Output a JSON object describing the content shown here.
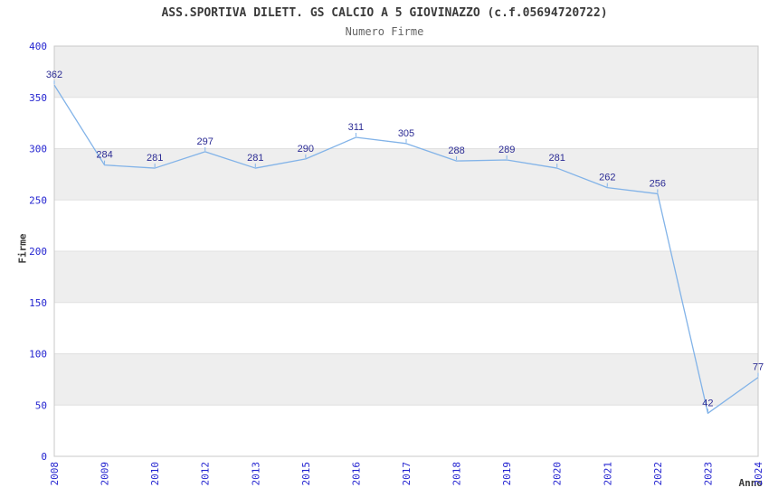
{
  "chart_data": {
    "type": "line",
    "title": "ASS.SPORTIVA DILETT. GS CALCIO A 5 GIOVINAZZO (c.f.05694720722)",
    "subtitle": "Numero Firme",
    "xlabel": "Anno",
    "ylabel": "Firme",
    "categories": [
      "2008",
      "2009",
      "2010",
      "2012",
      "2013",
      "2015",
      "2016",
      "2017",
      "2018",
      "2019",
      "2020",
      "2021",
      "2022",
      "2023",
      "2024"
    ],
    "series": [
      {
        "name": "Numero Firme",
        "values": [
          362,
          284,
          281,
          297,
          281,
          290,
          311,
          305,
          288,
          289,
          281,
          262,
          256,
          42,
          77
        ]
      }
    ],
    "ylim": [
      0,
      400
    ],
    "ytick_step": 50,
    "grid": true,
    "legend": "none",
    "band_pattern": "alternating horizontal bands of 50 units, gray on 50-100, 150-200, 250-300, 350-400",
    "colors": {
      "line": "#82b3e8",
      "annotation_text": "#2b2b94",
      "tick_text": "#2424d0",
      "band_fill": "#eeeeee",
      "grid_line": "#e0e0e0",
      "plot_border": "#c8c8c8",
      "title_text": "#3a3a3a",
      "subtitle_text": "#646464",
      "axis_title_text": "#3a3a3a",
      "background": "#ffffff"
    }
  }
}
